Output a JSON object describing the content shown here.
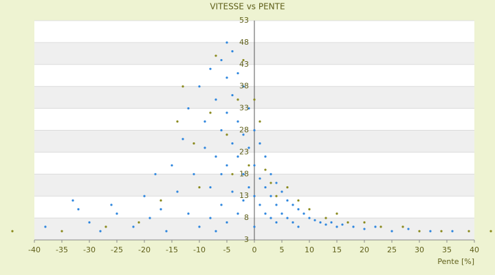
{
  "chart_data": {
    "type": "scatter",
    "title": "VITESSE vs PENTE",
    "x_label": "Pente [%]",
    "xlim": [
      -40,
      40
    ],
    "xticks": [
      -40,
      -35,
      -30,
      -25,
      -20,
      -15,
      -10,
      -5,
      0,
      5,
      10,
      15,
      20,
      25,
      30,
      35,
      40
    ],
    "ylim": [
      3,
      53
    ],
    "yticks": [
      3,
      8,
      13,
      18,
      23,
      28,
      33,
      38,
      43,
      48,
      53
    ],
    "grid": true,
    "series": [
      {
        "color": "#2e86de",
        "x": [
          -38,
          -33,
          -32,
          -30,
          -28,
          -26,
          -25,
          -22,
          -20,
          -19,
          -18,
          -17,
          -16,
          -15,
          -14,
          -13,
          -12,
          -12,
          -11,
          -10,
          -10,
          -9,
          -9,
          -8,
          -8,
          -8,
          -7,
          -7,
          -7,
          -6,
          -6,
          -6,
          -6,
          -5,
          -5,
          -5,
          -5,
          -5,
          -4,
          -4,
          -4,
          -4,
          -3,
          -3,
          -3,
          -3,
          -2,
          -2,
          -2,
          -2,
          -1,
          -1,
          -1,
          0,
          0,
          0,
          0,
          1,
          1,
          1,
          2,
          2,
          2,
          3,
          3,
          3,
          4,
          4,
          4,
          5,
          5,
          6,
          6,
          7,
          7,
          8,
          8,
          9,
          10,
          11,
          12,
          13,
          14,
          15,
          16,
          18,
          20,
          22,
          25,
          28,
          32,
          36
        ],
        "values": [
          6,
          12,
          10,
          7,
          5,
          11,
          9,
          6,
          13,
          8,
          18,
          10,
          5,
          20,
          14,
          26,
          9,
          33,
          18,
          38,
          6,
          24,
          30,
          42,
          15,
          8,
          35,
          22,
          5,
          44,
          28,
          18,
          11,
          48,
          40,
          32,
          20,
          7,
          46,
          36,
          25,
          14,
          41,
          30,
          22,
          9,
          38,
          27,
          18,
          12,
          33,
          24,
          15,
          28,
          20,
          13,
          6,
          25,
          17,
          11,
          22,
          15,
          9,
          18,
          13,
          8,
          16,
          11,
          7,
          14,
          9,
          12,
          8,
          11,
          7,
          10,
          6,
          9,
          8,
          7.5,
          7,
          6.5,
          7,
          6,
          6.5,
          6,
          5.5,
          6,
          5,
          5.5,
          5,
          5
        ]
      },
      {
        "color": "#8a8a1e",
        "x": [
          -44,
          -35,
          -27,
          -21,
          -17,
          -14,
          -13,
          -11,
          -10,
          -8,
          -7,
          -5,
          -4,
          -3,
          -2,
          -1,
          0,
          1,
          2,
          3,
          4,
          6,
          8,
          10,
          13,
          15,
          17,
          20,
          23,
          27,
          30,
          34,
          39,
          43
        ],
        "values": [
          5,
          5,
          6,
          7,
          12,
          30,
          38,
          25,
          15,
          32,
          45,
          27,
          18,
          35,
          44,
          20,
          35,
          30,
          19,
          16,
          13,
          15,
          12,
          10,
          8,
          9,
          7,
          7,
          6,
          6,
          5,
          5,
          5,
          5
        ]
      }
    ]
  }
}
